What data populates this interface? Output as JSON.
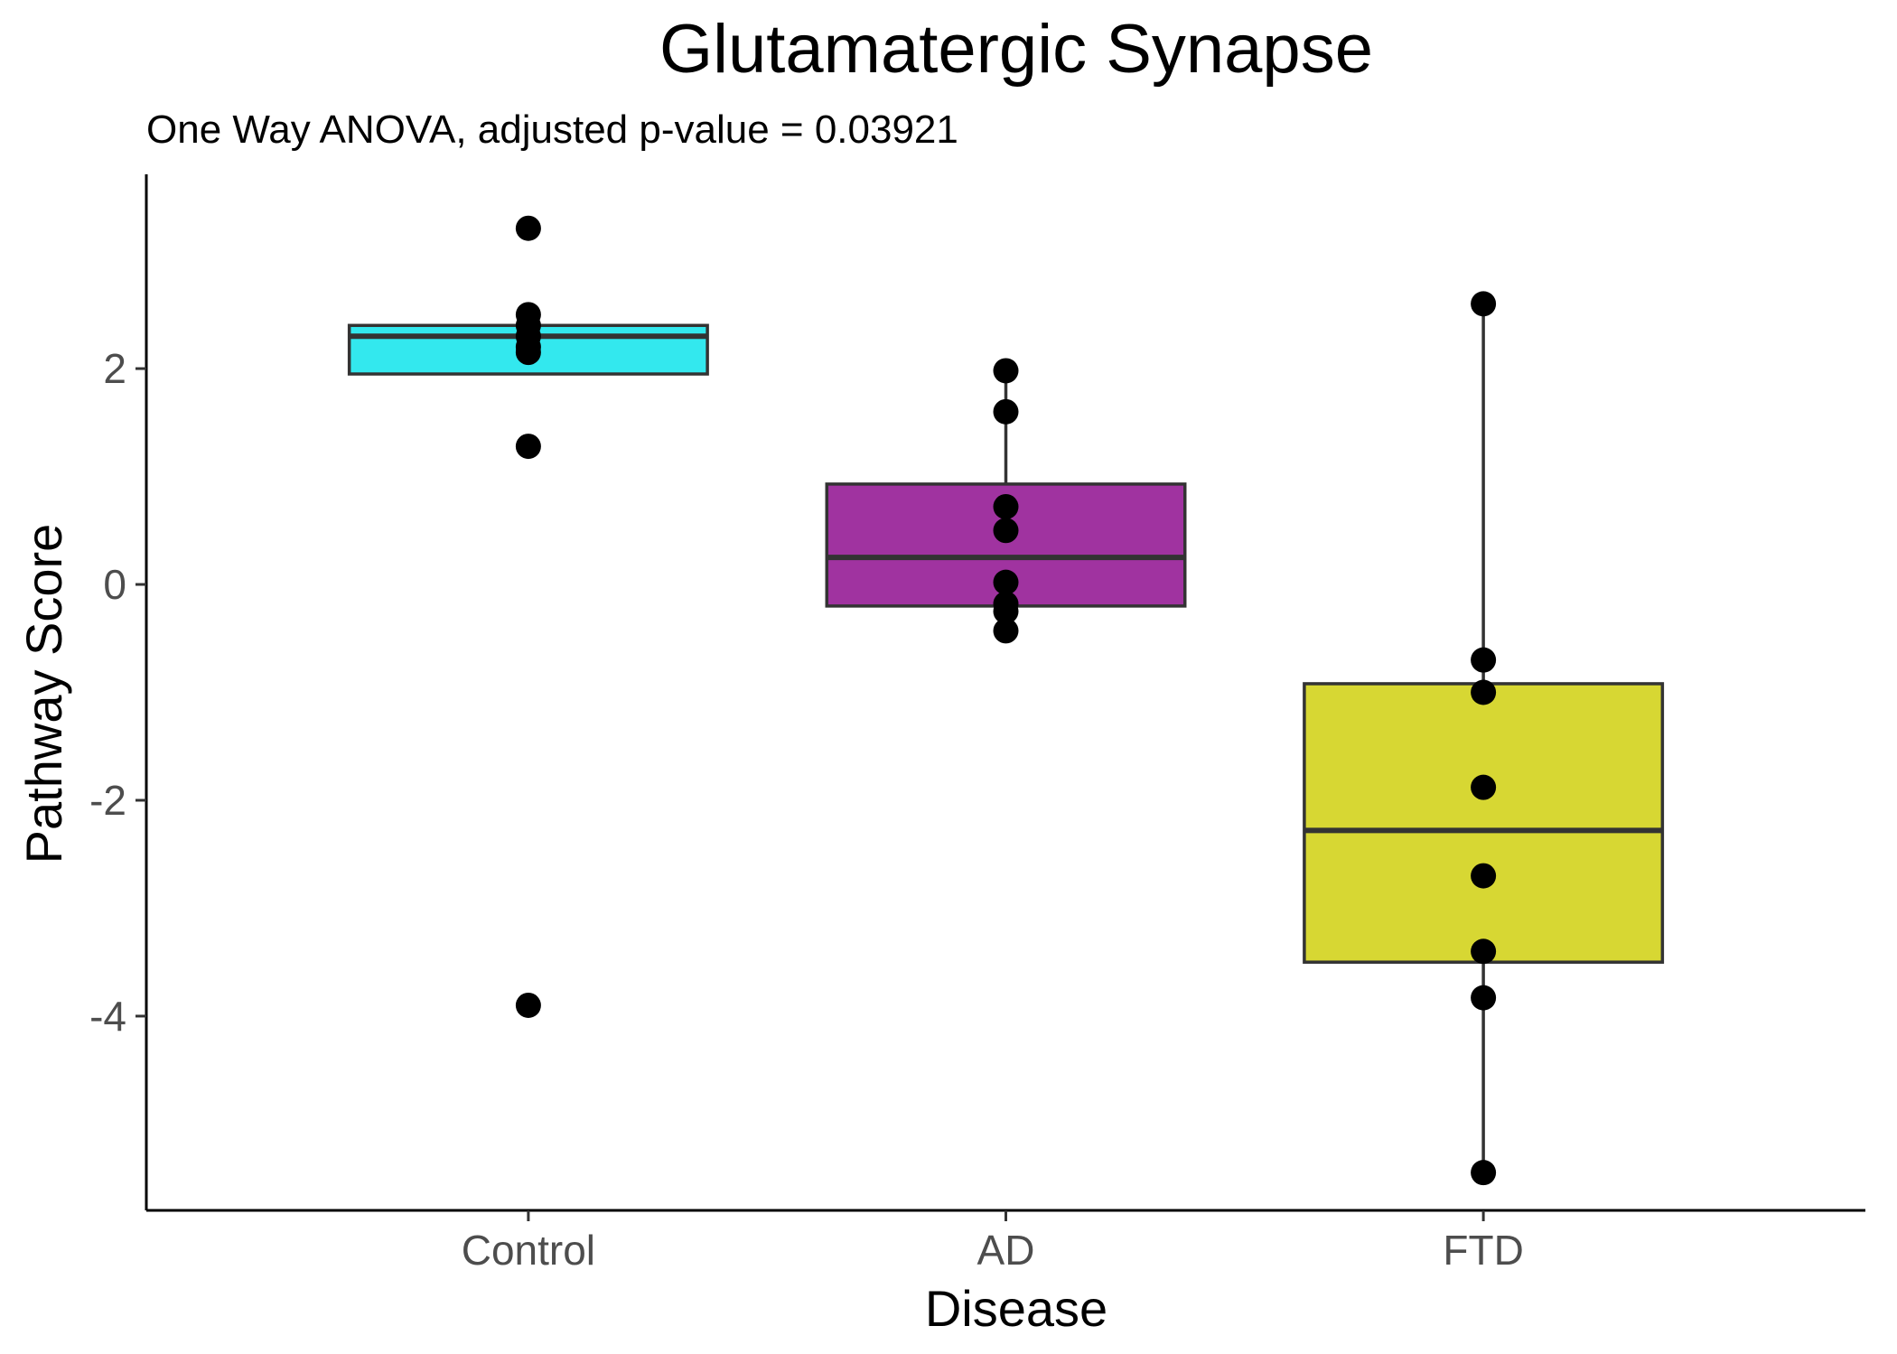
{
  "chart_data": {
    "type": "box",
    "title": "Glutamatergic Synapse",
    "subtitle": "One Way ANOVA, adjusted p-value = 0.03921",
    "xlabel": "Disease",
    "ylabel": "Pathway Score",
    "categories": [
      "Control",
      "AD",
      "FTD"
    ],
    "ylim": [
      -5.8,
      3.8
    ],
    "yticks": [
      -4,
      -2,
      0,
      2
    ],
    "ytick_labels": [
      "-4",
      "-2",
      "0",
      "2"
    ],
    "grid": false,
    "legend": "none",
    "groups": [
      {
        "name": "Control",
        "fill": "#33e8ee",
        "q1": 1.95,
        "median": 2.3,
        "q3": 2.4,
        "whisker_low": 1.95,
        "whisker_high": 2.4,
        "points": [
          3.3,
          2.5,
          2.4,
          2.3,
          2.2,
          2.15,
          1.28,
          -3.9
        ]
      },
      {
        "name": "AD",
        "fill": "#a033a0",
        "q1": -0.2,
        "median": 0.25,
        "q3": 0.93,
        "whisker_low": -0.43,
        "whisker_high": 1.98,
        "points": [
          1.98,
          1.6,
          0.72,
          0.5,
          0.02,
          -0.18,
          -0.25,
          -0.43
        ]
      },
      {
        "name": "FTD",
        "fill": "#d7d733",
        "q1": -3.5,
        "median": -2.28,
        "q3": -0.92,
        "whisker_low": -5.45,
        "whisker_high": 2.6,
        "points": [
          2.6,
          -0.7,
          -1.0,
          -1.88,
          -2.7,
          -3.4,
          -3.83,
          -5.45
        ]
      }
    ]
  }
}
